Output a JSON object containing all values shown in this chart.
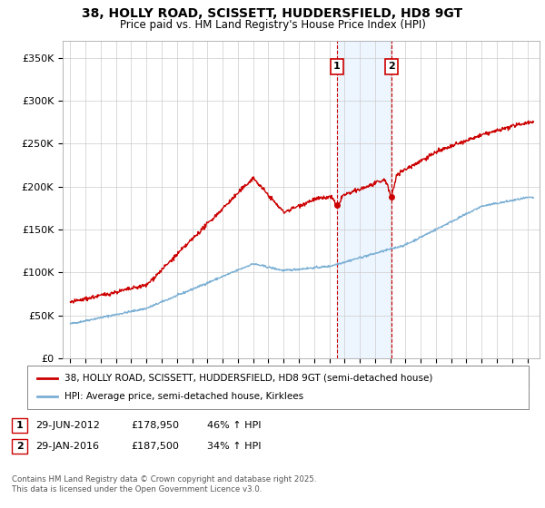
{
  "title": "38, HOLLY ROAD, SCISSETT, HUDDERSFIELD, HD8 9GT",
  "subtitle": "Price paid vs. HM Land Registry's House Price Index (HPI)",
  "ylabel_ticks": [
    "£0",
    "£50K",
    "£100K",
    "£150K",
    "£200K",
    "£250K",
    "£300K",
    "£350K"
  ],
  "ytick_values": [
    0,
    50000,
    100000,
    150000,
    200000,
    250000,
    300000,
    350000
  ],
  "ylim": [
    0,
    370000
  ],
  "red_line_color": "#cc0000",
  "blue_line_color": "#7bafd4",
  "purchase1_date": 2012.5,
  "purchase1_price": 178950,
  "purchase1_label": "1",
  "purchase2_date": 2016.08,
  "purchase2_price": 187500,
  "purchase2_label": "2",
  "shade_color": "#ddeeff",
  "shade_alpha": 0.5,
  "legend1_label": "38, HOLLY ROAD, SCISSETT, HUDDERSFIELD, HD8 9GT (semi-detached house)",
  "legend2_label": "HPI: Average price, semi-detached house, Kirklees",
  "footer": "Contains HM Land Registry data © Crown copyright and database right 2025.\nThis data is licensed under the Open Government Licence v3.0.",
  "background_color": "#ffffff",
  "grid_color": "#cccccc",
  "row1_num": "1",
  "row1_date": "29-JUN-2012",
  "row1_price": "£178,950",
  "row1_hpi": "46% ↑ HPI",
  "row2_num": "2",
  "row2_date": "29-JAN-2016",
  "row2_price": "£187,500",
  "row2_hpi": "34% ↑ HPI"
}
